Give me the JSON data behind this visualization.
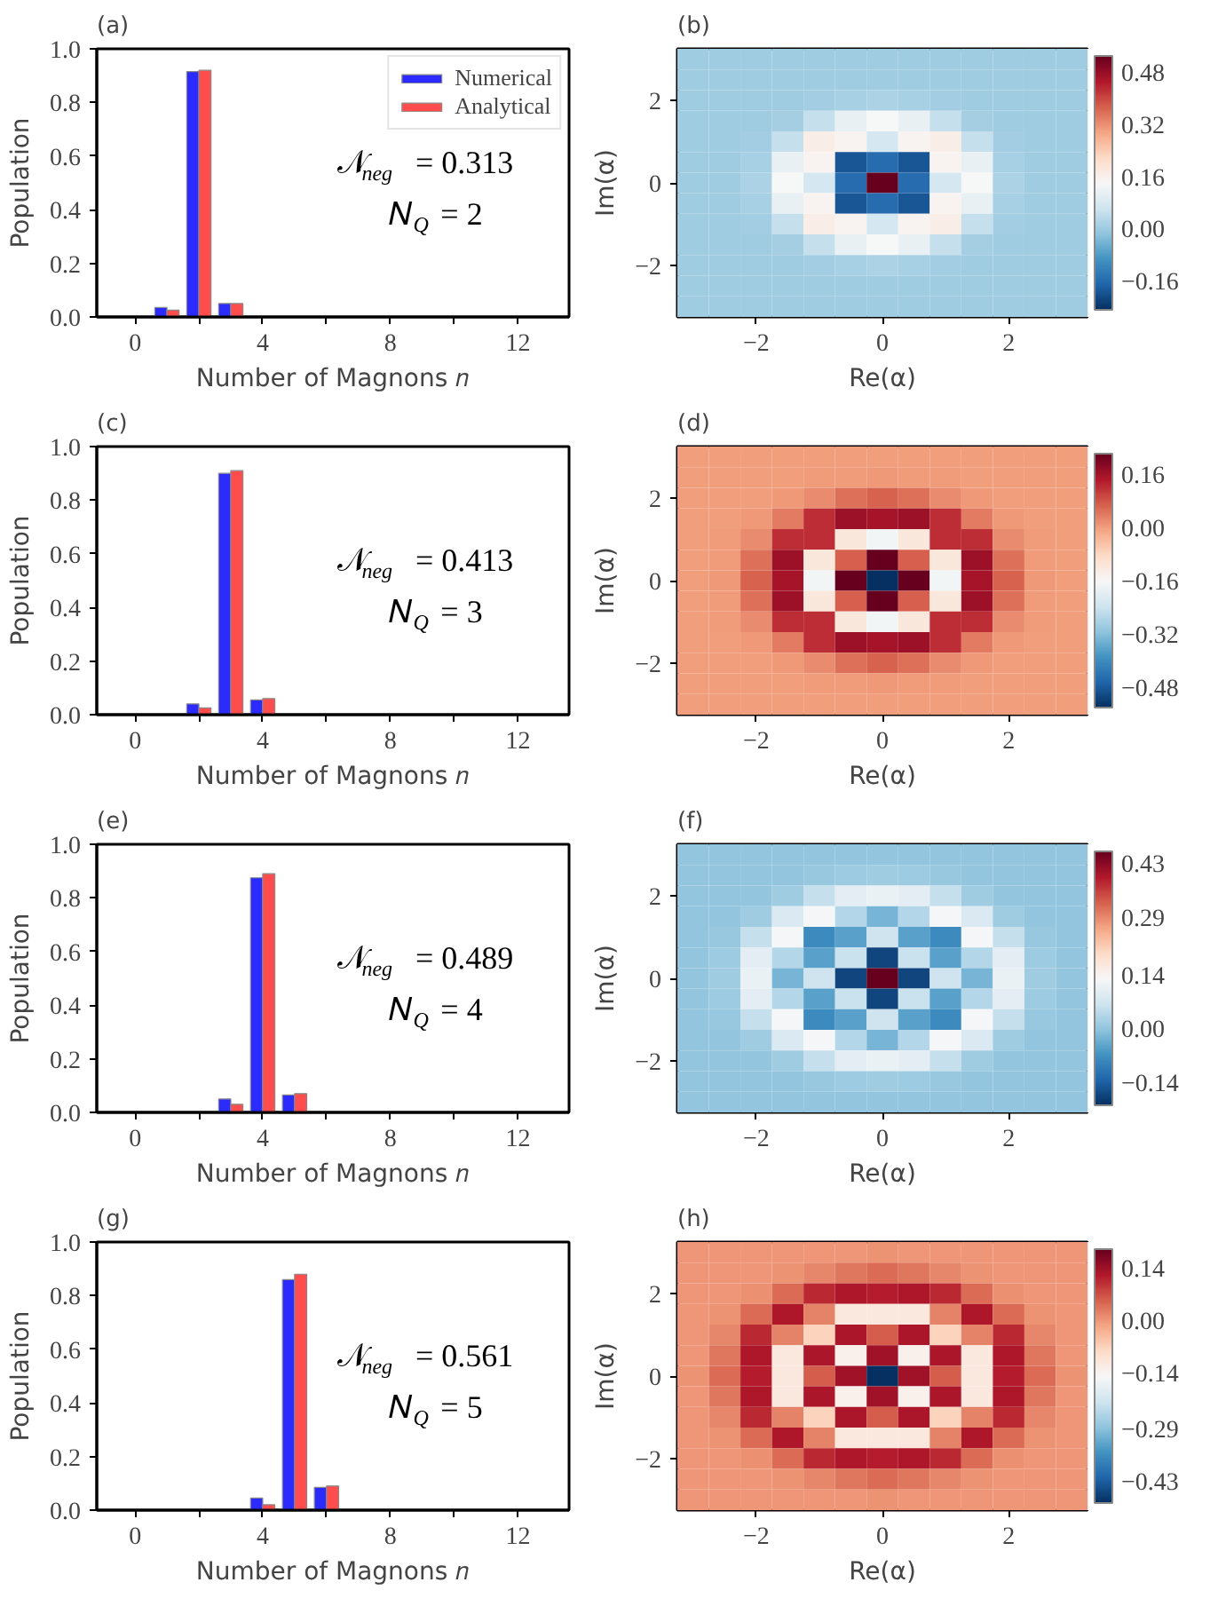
{
  "chart_data": [
    {
      "type": "bar",
      "title": "(a)",
      "xlabel": "Number of Magnons 𝑛",
      "ylabel": "Population",
      "legend": "top right",
      "series": [
        {
          "name": "Numerical",
          "color": "#2b2bff",
          "x": [
            1,
            2,
            3
          ],
          "values": [
            0.035,
            0.915,
            0.05
          ]
        },
        {
          "name": "Analytical",
          "color": "#ff4d4d",
          "x": [
            1,
            2,
            3
          ],
          "values": [
            0.025,
            0.92,
            0.05
          ]
        }
      ],
      "xlim": [
        -1.2,
        13.6
      ],
      "xticks": [
        0,
        {
          "value": 2,
          "label": null
        },
        4,
        {
          "value": 6,
          "label": null
        },
        8,
        {
          "value": 10,
          "label": null
        },
        12
      ],
      "ylim": [
        0,
        1
      ],
      "yticks": [
        {
          "value": 0,
          "label": "0.0"
        },
        {
          "value": 0.2,
          "label": "0.2"
        },
        {
          "value": 0.4,
          "label": "0.4"
        },
        {
          "value": 0.6,
          "label": "0.6"
        },
        {
          "value": 0.8,
          "label": "0.8"
        },
        {
          "value": 1,
          "label": "1.0"
        }
      ],
      "annotations": [
        "𝒩$_{neg}$ = 0.313",
        "𝑁$_{Q}$ = 2"
      ]
    },
    {
      "type": "heatmap",
      "title": "(b)",
      "xlabel": "Re(α)",
      "ylabel": "Im(α)",
      "x": [
        -3,
        -2.5,
        -2,
        -1.5,
        -1,
        -0.5,
        0,
        0.5,
        1,
        1.5,
        2,
        2.5,
        3
      ],
      "y": [
        3,
        2.5,
        2,
        1.5,
        1,
        0.5,
        0,
        -0.5,
        -1,
        -1.5,
        -2,
        -2.5,
        -3
      ],
      "xlim": [
        -3.25,
        3.25
      ],
      "ylim": [
        -3.25,
        3.25
      ],
      "xticks": [
        {
          "value": -2,
          "label": "−2"
        },
        0,
        2
      ],
      "yticks": [
        {
          "value": -2,
          "label": "−2"
        },
        0,
        2
      ],
      "clim": [
        -0.25,
        0.53
      ],
      "cticks": [
        {
          "value": -0.16,
          "label": "−0.16"
        },
        {
          "value": 0,
          "label": "0.00"
        },
        0.16,
        0.32,
        0.48
      ],
      "cells": [
        [
          0,
          0,
          0,
          0,
          0,
          0,
          0,
          0,
          0,
          0,
          0,
          0,
          0
        ],
        [
          0,
          0,
          0,
          0,
          0,
          0,
          0.001,
          0,
          0,
          0,
          0,
          0,
          0
        ],
        [
          0,
          0,
          0,
          0.001,
          0.004,
          0.012,
          0.017,
          0.012,
          0.004,
          0.001,
          0,
          0,
          0
        ],
        [
          0,
          0,
          0.001,
          0.008,
          0.047,
          0.111,
          0.138,
          0.111,
          0.047,
          0.008,
          0.001,
          0,
          0
        ],
        [
          0,
          0,
          0.004,
          0.047,
          0.165,
          0.152,
          0.072,
          0.152,
          0.165,
          0.047,
          0.004,
          0,
          0
        ],
        [
          0,
          0,
          0.012,
          0.111,
          0.152,
          -0.195,
          -0.161,
          -0.195,
          0.152,
          0.111,
          0.012,
          0,
          0
        ],
        [
          0,
          0.001,
          0.017,
          0.138,
          0.072,
          -0.161,
          0.53,
          -0.161,
          0.072,
          0.138,
          0.017,
          0.001,
          0
        ],
        [
          0,
          0,
          0.012,
          0.111,
          0.152,
          -0.195,
          -0.161,
          -0.195,
          0.152,
          0.111,
          0.012,
          0,
          0
        ],
        [
          0,
          0,
          0.004,
          0.047,
          0.165,
          0.152,
          0.072,
          0.152,
          0.165,
          0.047,
          0.004,
          0,
          0
        ],
        [
          0,
          0,
          0.001,
          0.008,
          0.047,
          0.111,
          0.138,
          0.111,
          0.047,
          0.008,
          0.001,
          0,
          0
        ],
        [
          0,
          0,
          0,
          0.001,
          0.004,
          0.012,
          0.017,
          0.012,
          0.004,
          0.001,
          0,
          0,
          0
        ],
        [
          0,
          0,
          0,
          0,
          0,
          0,
          0.001,
          0,
          0,
          0,
          0,
          0,
          0
        ],
        [
          0,
          0,
          0,
          0,
          0,
          0,
          0,
          0,
          0,
          0,
          0,
          0,
          0
        ]
      ]
    },
    {
      "type": "bar",
      "title": "(c)",
      "xlabel": "Number of Magnons 𝑛",
      "ylabel": "Population",
      "series": [
        {
          "color": "#2b2bff",
          "x": [
            2,
            3,
            4
          ],
          "values": [
            0.04,
            0.9,
            0.055
          ]
        },
        {
          "color": "#ff4d4d",
          "x": [
            2,
            3,
            4
          ],
          "values": [
            0.025,
            0.91,
            0.06
          ]
        }
      ],
      "xlim": [
        -1.2,
        13.6
      ],
      "xticks": [
        0,
        {
          "value": 2,
          "label": null
        },
        4,
        {
          "value": 6,
          "label": null
        },
        8,
        {
          "value": 10,
          "label": null
        },
        12
      ],
      "ylim": [
        0,
        1
      ],
      "yticks": [
        {
          "value": 0,
          "label": "0.0"
        },
        {
          "value": 0.2,
          "label": "0.2"
        },
        {
          "value": 0.4,
          "label": "0.4"
        },
        {
          "value": 0.6,
          "label": "0.6"
        },
        {
          "value": 0.8,
          "label": "0.8"
        },
        {
          "value": 1,
          "label": "1.0"
        }
      ],
      "annotations": [
        "𝒩$_{neg}$ = 0.413",
        "𝑁$_{Q}$ = 3"
      ]
    },
    {
      "type": "heatmap",
      "title": "(d)",
      "xlabel": "Re(α)",
      "ylabel": "Im(α)",
      "x": [
        -3,
        -2.5,
        -2,
        -1.5,
        -1,
        -0.5,
        0,
        0.5,
        1,
        1.5,
        2,
        2.5,
        3
      ],
      "y": [
        3,
        2.5,
        2,
        1.5,
        1,
        0.5,
        0,
        -0.5,
        -1,
        -1.5,
        -2,
        -2.5,
        -3
      ],
      "xlim": [
        -3.25,
        3.25
      ],
      "ylim": [
        -3.25,
        3.25
      ],
      "xticks": [
        {
          "value": -2,
          "label": "−2"
        },
        0,
        2
      ],
      "yticks": [
        {
          "value": -2,
          "label": "−2"
        },
        0,
        2
      ],
      "clim": [
        -0.54,
        0.22
      ],
      "cticks": [
        {
          "value": -0.48,
          "label": "−0.48"
        },
        {
          "value": -0.32,
          "label": "−0.32"
        },
        {
          "value": -0.16,
          "label": "−0.16"
        },
        {
          "value": 0,
          "label": "0.00"
        },
        0.16
      ],
      "cells": [
        [
          0,
          0,
          0,
          0,
          0,
          0,
          0,
          0,
          0,
          0,
          0,
          0,
          0
        ],
        [
          0,
          0,
          0,
          0,
          0.001,
          0.002,
          0.004,
          0.002,
          0.001,
          0,
          0,
          0,
          0
        ],
        [
          0,
          0,
          0,
          0.004,
          0.019,
          0.048,
          0.063,
          0.048,
          0.019,
          0.004,
          0,
          0,
          0
        ],
        [
          0,
          0,
          0.004,
          0.036,
          0.122,
          0.166,
          0.156,
          0.166,
          0.122,
          0.036,
          0.004,
          0,
          0
        ],
        [
          0,
          0.001,
          0.019,
          0.122,
          0.122,
          -0.118,
          -0.171,
          -0.118,
          0.122,
          0.122,
          0.019,
          0.001,
          0
        ],
        [
          0,
          0.002,
          0.048,
          0.166,
          -0.118,
          0.066,
          0.218,
          0.066,
          -0.118,
          0.166,
          0.048,
          0.002,
          0
        ],
        [
          0,
          0.004,
          0.063,
          0.156,
          -0.171,
          0.218,
          -0.54,
          0.218,
          -0.171,
          0.156,
          0.063,
          0.004,
          0
        ],
        [
          0,
          0.002,
          0.048,
          0.166,
          -0.118,
          0.066,
          0.218,
          0.066,
          -0.118,
          0.166,
          0.048,
          0.002,
          0
        ],
        [
          0,
          0.001,
          0.019,
          0.122,
          0.122,
          -0.118,
          -0.171,
          -0.118,
          0.122,
          0.122,
          0.019,
          0.001,
          0
        ],
        [
          0,
          0,
          0.004,
          0.036,
          0.122,
          0.166,
          0.156,
          0.166,
          0.122,
          0.036,
          0.004,
          0,
          0
        ],
        [
          0,
          0,
          0,
          0.004,
          0.019,
          0.048,
          0.063,
          0.048,
          0.019,
          0.004,
          0,
          0,
          0
        ],
        [
          0,
          0,
          0,
          0,
          0.001,
          0.002,
          0.004,
          0.002,
          0.001,
          0,
          0,
          0,
          0
        ],
        [
          0,
          0,
          0,
          0,
          0,
          0,
          0,
          0,
          0,
          0,
          0,
          0,
          0
        ]
      ]
    },
    {
      "type": "bar",
      "title": "(e)",
      "xlabel": "Number of Magnons 𝑛",
      "ylabel": "Population",
      "series": [
        {
          "color": "#2b2bff",
          "x": [
            3,
            4,
            5
          ],
          "values": [
            0.05,
            0.875,
            0.065
          ]
        },
        {
          "color": "#ff4d4d",
          "x": [
            3,
            4,
            5
          ],
          "values": [
            0.03,
            0.89,
            0.07
          ]
        }
      ],
      "xlim": [
        -1.2,
        13.6
      ],
      "xticks": [
        0,
        {
          "value": 2,
          "label": null
        },
        4,
        {
          "value": 6,
          "label": null
        },
        8,
        {
          "value": 10,
          "label": null
        },
        12
      ],
      "ylim": [
        0,
        1
      ],
      "yticks": [
        {
          "value": 0,
          "label": "0.0"
        },
        {
          "value": 0.2,
          "label": "0.2"
        },
        {
          "value": 0.4,
          "label": "0.4"
        },
        {
          "value": 0.6,
          "label": "0.6"
        },
        {
          "value": 0.8,
          "label": "0.8"
        },
        {
          "value": 1,
          "label": "1.0"
        }
      ],
      "annotations": [
        "𝒩$_{neg}$ = 0.489",
        "𝑁$_{Q}$ = 4"
      ]
    },
    {
      "type": "heatmap",
      "title": "(f)",
      "xlabel": "Re(α)",
      "ylabel": "Im(α)",
      "x": [
        -3,
        -2.5,
        -2,
        -1.5,
        -1,
        -0.5,
        0,
        0.5,
        1,
        1.5,
        2,
        2.5,
        3
      ],
      "y": [
        3,
        2.5,
        2,
        1.5,
        1,
        0.5,
        0,
        -0.5,
        -1,
        -1.5,
        -2,
        -2.5,
        -3
      ],
      "xlim": [
        -3.25,
        3.25
      ],
      "ylim": [
        -3.25,
        3.25
      ],
      "xticks": [
        {
          "value": -2,
          "label": "−2"
        },
        0,
        2
      ],
      "yticks": [
        {
          "value": -2,
          "label": "−2"
        },
        0,
        2
      ],
      "clim": [
        -0.2,
        0.46
      ],
      "cticks": [
        {
          "value": -0.14,
          "label": "−0.14"
        },
        {
          "value": 0,
          "label": "0.00"
        },
        0.14,
        0.29,
        0.43
      ],
      "cells": [
        [
          0,
          0,
          0,
          0,
          0,
          0,
          0,
          0,
          0,
          0,
          0,
          0,
          0
        ],
        [
          0,
          0,
          0,
          0.001,
          0.004,
          0.01,
          0.013,
          0.01,
          0.004,
          0.001,
          0,
          0,
          0
        ],
        [
          0,
          0,
          0.001,
          0.013,
          0.051,
          0.094,
          0.109,
          0.094,
          0.051,
          0.013,
          0.001,
          0,
          0
        ],
        [
          0,
          0.001,
          0.013,
          0.079,
          0.125,
          0.034,
          -0.023,
          0.034,
          0.125,
          0.079,
          0.013,
          0.001,
          0
        ],
        [
          0,
          0.004,
          0.051,
          0.125,
          -0.081,
          -0.049,
          0.062,
          -0.049,
          -0.081,
          0.125,
          0.051,
          0.004,
          0
        ],
        [
          0,
          0.01,
          0.094,
          0.034,
          -0.049,
          0.057,
          -0.174,
          0.057,
          -0.049,
          0.034,
          0.094,
          0.01,
          0
        ],
        [
          0,
          0.013,
          0.109,
          -0.023,
          0.062,
          -0.174,
          0.46,
          -0.174,
          0.062,
          -0.023,
          0.109,
          0.013,
          0
        ],
        [
          0,
          0.01,
          0.094,
          0.034,
          -0.049,
          0.057,
          -0.174,
          0.057,
          -0.049,
          0.034,
          0.094,
          0.01,
          0
        ],
        [
          0,
          0.004,
          0.051,
          0.125,
          -0.081,
          -0.049,
          0.062,
          -0.049,
          -0.081,
          0.125,
          0.051,
          0.004,
          0
        ],
        [
          0,
          0.001,
          0.013,
          0.079,
          0.125,
          0.034,
          -0.023,
          0.034,
          0.125,
          0.079,
          0.013,
          0.001,
          0
        ],
        [
          0,
          0,
          0.001,
          0.013,
          0.051,
          0.094,
          0.109,
          0.094,
          0.051,
          0.013,
          0.001,
          0,
          0
        ],
        [
          0,
          0,
          0,
          0.001,
          0.004,
          0.01,
          0.013,
          0.01,
          0.004,
          0.001,
          0,
          0,
          0
        ],
        [
          0,
          0,
          0,
          0,
          0,
          0,
          0,
          0,
          0,
          0,
          0,
          0,
          0
        ]
      ]
    },
    {
      "type": "bar",
      "title": "(g)",
      "xlabel": "Number of Magnons 𝑛",
      "ylabel": "Population",
      "series": [
        {
          "color": "#2b2bff",
          "x": [
            4,
            5,
            6
          ],
          "values": [
            0.045,
            0.86,
            0.085
          ]
        },
        {
          "color": "#ff4d4d",
          "x": [
            4,
            5,
            6
          ],
          "values": [
            0.02,
            0.88,
            0.09
          ]
        }
      ],
      "xlim": [
        -1.2,
        13.6
      ],
      "xticks": [
        0,
        {
          "value": 2,
          "label": null
        },
        4,
        {
          "value": 6,
          "label": null
        },
        8,
        {
          "value": 10,
          "label": null
        },
        12
      ],
      "ylim": [
        0,
        1
      ],
      "yticks": [
        {
          "value": 0,
          "label": "0.0"
        },
        {
          "value": 0.2,
          "label": "0.2"
        },
        {
          "value": 0.4,
          "label": "0.4"
        },
        {
          "value": 0.6,
          "label": "0.6"
        },
        {
          "value": 0.8,
          "label": "0.8"
        },
        {
          "value": 1,
          "label": "1.0"
        }
      ],
      "annotations": [
        "𝒩$_{neg}$ = 0.561",
        "𝑁$_{Q}$ = 5"
      ]
    },
    {
      "type": "heatmap",
      "title": "(h)",
      "xlabel": "Re(α)",
      "ylabel": "Im(α)",
      "x": [
        -3,
        -2.5,
        -2,
        -1.5,
        -1,
        -0.5,
        0,
        0.5,
        1,
        1.5,
        2,
        2.5,
        3
      ],
      "y": [
        3,
        2.5,
        2,
        1.5,
        1,
        0.5,
        0,
        -0.5,
        -1,
        -1.5,
        -2,
        -2.5,
        -3
      ],
      "xlim": [
        -3.25,
        3.25
      ],
      "ylim": [
        -3.25,
        3.25
      ],
      "xticks": [
        {
          "value": -2,
          "label": "−2"
        },
        0,
        2
      ],
      "yticks": [
        {
          "value": -2,
          "label": "−2"
        },
        0,
        2
      ],
      "clim": [
        -0.49,
        0.19
      ],
      "cticks": [
        {
          "value": -0.43,
          "label": "−0.43"
        },
        {
          "value": -0.29,
          "label": "−0.29"
        },
        {
          "value": -0.14,
          "label": "−0.14"
        },
        {
          "value": 0,
          "label": "0.00"
        },
        0.14
      ],
      "cells": [
        [
          0,
          0,
          0,
          0,
          0,
          0.001,
          0.002,
          0.001,
          0,
          0,
          0,
          0,
          0
        ],
        [
          0,
          0,
          0,
          0.003,
          0.015,
          0.033,
          0.042,
          0.033,
          0.015,
          0.003,
          0,
          0,
          0
        ],
        [
          0,
          0,
          0.006,
          0.042,
          0.106,
          0.125,
          0.117,
          0.125,
          0.106,
          0.042,
          0.006,
          0,
          0
        ],
        [
          0,
          0.003,
          0.042,
          0.124,
          0.018,
          -0.113,
          -0.113,
          -0.113,
          0.018,
          0.124,
          0.042,
          0.003,
          0
        ],
        [
          0,
          0.015,
          0.106,
          0.018,
          -0.071,
          0.127,
          0.057,
          0.127,
          -0.071,
          0.018,
          0.106,
          0.015,
          0
        ],
        [
          0.001,
          0.033,
          0.125,
          -0.113,
          0.127,
          -0.132,
          0.139,
          -0.132,
          0.127,
          -0.113,
          0.125,
          0.033,
          0.001
        ],
        [
          0.002,
          0.042,
          0.117,
          -0.113,
          0.057,
          0.139,
          -0.49,
          0.139,
          0.057,
          -0.113,
          0.117,
          0.042,
          0.002
        ],
        [
          0.001,
          0.033,
          0.125,
          -0.113,
          0.127,
          -0.132,
          0.139,
          -0.132,
          0.127,
          -0.113,
          0.125,
          0.033,
          0.001
        ],
        [
          0,
          0.015,
          0.106,
          0.018,
          -0.071,
          0.127,
          0.057,
          0.127,
          -0.071,
          0.018,
          0.106,
          0.015,
          0
        ],
        [
          0,
          0.003,
          0.042,
          0.124,
          0.018,
          -0.113,
          -0.113,
          -0.113,
          0.018,
          0.124,
          0.042,
          0.003,
          0
        ],
        [
          0,
          0,
          0.006,
          0.042,
          0.106,
          0.125,
          0.117,
          0.125,
          0.106,
          0.042,
          0.006,
          0,
          0
        ],
        [
          0,
          0,
          0,
          0.003,
          0.015,
          0.033,
          0.042,
          0.033,
          0.015,
          0.003,
          0,
          0,
          0
        ],
        [
          0,
          0,
          0,
          0,
          0,
          0.001,
          0.002,
          0.001,
          0,
          0,
          0,
          0,
          0
        ]
      ]
    }
  ]
}
